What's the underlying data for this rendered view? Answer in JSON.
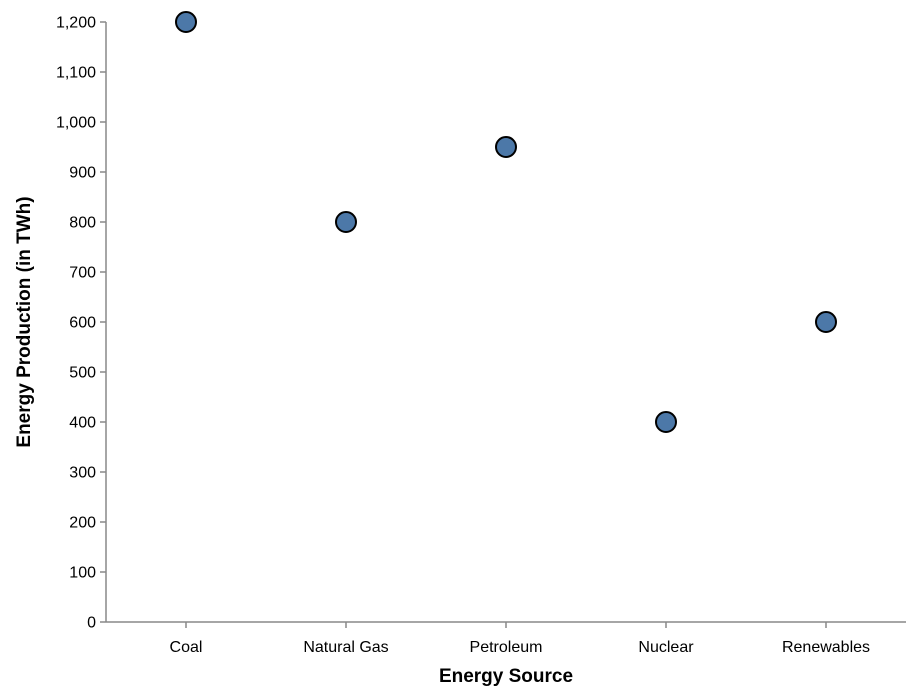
{
  "chart_data": {
    "type": "scatter",
    "categories": [
      "Coal",
      "Natural Gas",
      "Petroleum",
      "Nuclear",
      "Renewables"
    ],
    "series": [
      {
        "values": [
          1200,
          800,
          950,
          400,
          600
        ]
      }
    ],
    "xlabel": "Energy Source",
    "ylabel": "Energy Production (in TWh)",
    "ylim": [
      0,
      1200
    ],
    "yticks": [
      0,
      100,
      200,
      300,
      400,
      500,
      600,
      700,
      800,
      900,
      1000,
      1100,
      1200
    ],
    "ytick_labels": [
      "0",
      "100",
      "200",
      "300",
      "400",
      "500",
      "600",
      "700",
      "800",
      "900",
      "1,000",
      "1,100",
      "1,200"
    ],
    "grid": false,
    "colors": {
      "point_fill": "#4c78a8",
      "point_stroke": "#000000",
      "axis": "#888888"
    }
  }
}
